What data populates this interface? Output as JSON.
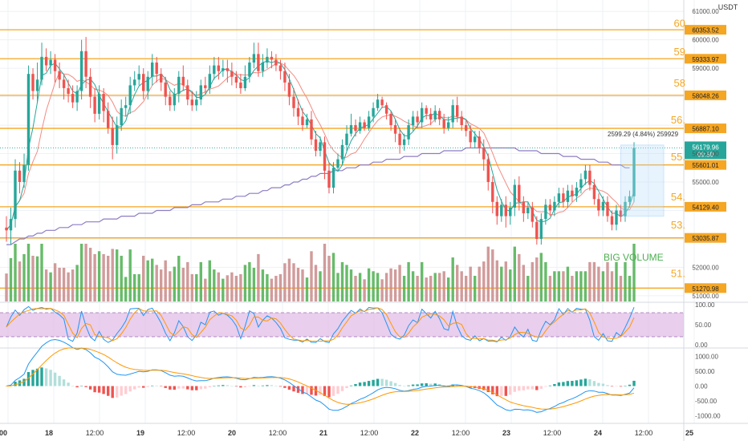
{
  "currency": "USDT",
  "big_price_labels": [
    "60",
    "59",
    "58",
    "56.",
    "55.",
    "54.",
    "53.",
    "51."
  ],
  "annotation": "BIG VOLUME",
  "measure_label": "2599.29 (4.84%) 259929",
  "colors": {
    "up": "#26a69a",
    "down": "#ef5350",
    "level": "#f5a623",
    "ma_long": "#8e7cc3",
    "vol_up": "#4caf50",
    "vol_down": "#c98a8a",
    "stoch_fill": "#e1bee7",
    "macd_line": "#2196f3",
    "signal_line": "#ff9800"
  },
  "chart_data": [
    {
      "type": "candlestick",
      "title": "",
      "ylim": [
        50800,
        61400
      ],
      "y_ticks": [
        61000,
        60000,
        59000,
        58000,
        57000,
        56000,
        55000,
        54000,
        53000,
        52000,
        51000
      ],
      "x_labels": [
        "00",
        "18",
        "12:00",
        "19",
        "12:00",
        "20",
        "12:00",
        "21",
        "12:00",
        "22",
        "12:00",
        "23",
        "12:00",
        "24",
        "12:00",
        "25"
      ],
      "horizontal_levels": [
        60353.52,
        59333.97,
        58048.26,
        56887.1,
        55601.01,
        54129.4,
        53035.87,
        51270.98
      ],
      "current_price": "56179.96",
      "countdown": "09:50",
      "candles": [
        [
          53400,
          53300,
          52900,
          53800
        ],
        [
          53300,
          53700,
          52800,
          54100
        ],
        [
          53700,
          55400,
          53400,
          55800
        ],
        [
          55400,
          55000,
          54600,
          55700
        ],
        [
          55000,
          55600,
          54800,
          56000
        ],
        [
          55600,
          58800,
          55400,
          59100
        ],
        [
          58800,
          58200,
          57900,
          59000
        ],
        [
          58200,
          58600,
          57800,
          59200
        ],
        [
          58600,
          59400,
          58400,
          59900
        ],
        [
          59400,
          59100,
          58900,
          59700
        ],
        [
          59100,
          59300,
          58800,
          59600
        ],
        [
          59300,
          58900,
          58500,
          59500
        ],
        [
          58900,
          58600,
          58300,
          59200
        ],
        [
          58600,
          58300,
          57900,
          58800
        ],
        [
          58300,
          58100,
          57800,
          58600
        ],
        [
          58100,
          57800,
          57600,
          58400
        ],
        [
          57800,
          58200,
          57500,
          58400
        ],
        [
          58200,
          59600,
          57900,
          60000
        ],
        [
          59600,
          58700,
          58300,
          60100
        ],
        [
          58700,
          58000,
          57600,
          59000
        ],
        [
          58000,
          57400,
          57100,
          58300
        ],
        [
          57400,
          58100,
          57200,
          58400
        ],
        [
          58100,
          57500,
          57100,
          58300
        ],
        [
          57500,
          56900,
          56700,
          57800
        ],
        [
          56900,
          56300,
          55800,
          57300
        ],
        [
          56300,
          57000,
          56000,
          57300
        ],
        [
          57000,
          57600,
          56800,
          57900
        ],
        [
          57600,
          57700,
          57300,
          58000
        ],
        [
          57700,
          58400,
          57400,
          58700
        ],
        [
          58400,
          58600,
          58200,
          58900
        ],
        [
          58600,
          58800,
          58400,
          59100
        ],
        [
          58800,
          58200,
          57900,
          59000
        ],
        [
          58200,
          58700,
          57900,
          58900
        ],
        [
          58700,
          59200,
          58400,
          59500
        ],
        [
          59200,
          58800,
          58500,
          59400
        ],
        [
          58800,
          58500,
          58200,
          59000
        ],
        [
          58500,
          58000,
          57700,
          58700
        ],
        [
          58000,
          57700,
          57500,
          58200
        ],
        [
          57700,
          58100,
          57500,
          58300
        ],
        [
          58100,
          58700,
          57800,
          58900
        ],
        [
          58700,
          58400,
          58200,
          59100
        ],
        [
          58400,
          57900,
          57700,
          58600
        ],
        [
          57900,
          57700,
          57500,
          58200
        ],
        [
          57700,
          57900,
          57500,
          58200
        ],
        [
          57900,
          58400,
          57700,
          58600
        ],
        [
          58400,
          58300,
          58100,
          58700
        ],
        [
          58300,
          58800,
          58100,
          59100
        ],
        [
          58800,
          59100,
          58600,
          59400
        ],
        [
          59100,
          58900,
          58600,
          59400
        ],
        [
          58900,
          59000,
          58700,
          59300
        ],
        [
          59000,
          58900,
          58500,
          59300
        ],
        [
          58900,
          58700,
          58400,
          59200
        ],
        [
          58700,
          58500,
          58300,
          58900
        ],
        [
          58500,
          58300,
          58100,
          58800
        ],
        [
          58300,
          58700,
          58200,
          59100
        ],
        [
          58700,
          59200,
          58500,
          59400
        ],
        [
          59200,
          59500,
          59000,
          59900
        ],
        [
          59500,
          58900,
          58700,
          59900
        ],
        [
          58900,
          59200,
          58700,
          59500
        ],
        [
          59200,
          59400,
          59000,
          59700
        ],
        [
          59400,
          59300,
          59000,
          59600
        ],
        [
          59300,
          59100,
          58900,
          59500
        ],
        [
          59100,
          58900,
          58600,
          59300
        ],
        [
          58900,
          58500,
          58200,
          59200
        ],
        [
          58500,
          58000,
          57700,
          58800
        ],
        [
          58000,
          57600,
          57300,
          58300
        ],
        [
          57600,
          57300,
          57000,
          57900
        ],
        [
          57300,
          57000,
          56800,
          57600
        ],
        [
          57000,
          57200,
          56900,
          57400
        ],
        [
          57200,
          56500,
          56300,
          57500
        ],
        [
          56500,
          56100,
          55900,
          56800
        ],
        [
          56100,
          56400,
          55900,
          56600
        ],
        [
          56400,
          55400,
          55100,
          56600
        ],
        [
          55400,
          54800,
          54600,
          55700
        ],
        [
          54800,
          55500,
          54600,
          55700
        ],
        [
          55500,
          55800,
          55400,
          56000
        ],
        [
          55800,
          56300,
          55600,
          56500
        ],
        [
          56300,
          56700,
          56100,
          57000
        ],
        [
          56700,
          57000,
          56600,
          57400
        ],
        [
          57000,
          56800,
          56600,
          57200
        ],
        [
          56800,
          57100,
          56700,
          57300
        ],
        [
          57100,
          56900,
          56800,
          57200
        ],
        [
          56900,
          57300,
          56800,
          57500
        ],
        [
          57300,
          57600,
          57100,
          57800
        ],
        [
          57600,
          57900,
          57500,
          58100
        ],
        [
          57900,
          57700,
          57600,
          58000
        ],
        [
          57700,
          57400,
          57200,
          57800
        ],
        [
          57400,
          57000,
          56800,
          57500
        ],
        [
          57000,
          56700,
          56400,
          57200
        ],
        [
          56700,
          56300,
          56000,
          56900
        ],
        [
          56300,
          56500,
          56100,
          56700
        ],
        [
          56500,
          57000,
          56300,
          57200
        ],
        [
          57000,
          57300,
          56800,
          57500
        ],
        [
          57300,
          57100,
          56900,
          57500
        ],
        [
          57100,
          57600,
          56900,
          57800
        ],
        [
          57600,
          57400,
          57200,
          57700
        ],
        [
          57400,
          57200,
          57000,
          57600
        ],
        [
          57200,
          57500,
          57100,
          57700
        ],
        [
          57500,
          57200,
          57000,
          57600
        ],
        [
          57200,
          56900,
          56700,
          57400
        ],
        [
          56900,
          57100,
          56800,
          57300
        ],
        [
          57100,
          57700,
          56900,
          57900
        ],
        [
          57700,
          57300,
          57100,
          58000
        ],
        [
          57300,
          57000,
          56800,
          57500
        ],
        [
          57000,
          56800,
          56600,
          57200
        ],
        [
          56800,
          56400,
          56200,
          57000
        ],
        [
          56400,
          56600,
          56200,
          56800
        ],
        [
          56600,
          56200,
          56000,
          56800
        ],
        [
          56200,
          55800,
          55400,
          56500
        ],
        [
          55800,
          55000,
          54700,
          56000
        ],
        [
          55000,
          54300,
          53900,
          55200
        ],
        [
          54300,
          53800,
          53500,
          54500
        ],
        [
          53800,
          54200,
          53600,
          54400
        ],
        [
          54200,
          53800,
          53400,
          54500
        ],
        [
          53800,
          54100,
          53500,
          54300
        ],
        [
          54100,
          54900,
          53800,
          55100
        ],
        [
          54900,
          54300,
          54000,
          55200
        ],
        [
          54300,
          53900,
          53600,
          54500
        ],
        [
          53900,
          54100,
          53700,
          54300
        ],
        [
          54100,
          53600,
          53400,
          54300
        ],
        [
          53600,
          53000,
          52800,
          53800
        ],
        [
          53000,
          53700,
          52800,
          53900
        ],
        [
          53700,
          54200,
          53500,
          54400
        ],
        [
          54200,
          54000,
          53800,
          54400
        ],
        [
          54000,
          54300,
          53800,
          54500
        ],
        [
          54300,
          54600,
          54100,
          54800
        ],
        [
          54600,
          54300,
          54100,
          54800
        ],
        [
          54300,
          54700,
          54100,
          54900
        ],
        [
          54700,
          54500,
          54300,
          54900
        ],
        [
          54500,
          54800,
          54300,
          55000
        ],
        [
          54800,
          55100,
          54600,
          55300
        ],
        [
          55100,
          55400,
          54900,
          55600
        ],
        [
          55400,
          54900,
          54700,
          55600
        ],
        [
          54900,
          54400,
          54200,
          55100
        ],
        [
          54400,
          54000,
          53800,
          54600
        ],
        [
          54000,
          54300,
          53800,
          54500
        ],
        [
          54300,
          53800,
          53600,
          54500
        ],
        [
          53800,
          53500,
          53300,
          54000
        ],
        [
          53500,
          54000,
          53300,
          54200
        ],
        [
          54000,
          53800,
          53600,
          54200
        ],
        [
          53800,
          54300,
          53600,
          54500
        ],
        [
          54300,
          54500,
          54100,
          54700
        ],
        [
          54500,
          56200,
          54300,
          56400
        ]
      ],
      "overlays": [
        {
          "name": "",
          "values": [
            52800,
            52800,
            52900,
            53000,
            53000,
            53100,
            53100,
            53200,
            53200,
            53300,
            53300,
            53300,
            53400,
            53400,
            53400,
            53500,
            53500,
            53500,
            53600,
            53600,
            53600,
            53600,
            53700,
            53700,
            53700,
            53700,
            53800,
            53800,
            53800,
            53800,
            53900,
            53900,
            53900,
            53900,
            54000,
            54000,
            54000,
            54000,
            54100,
            54100,
            54100,
            54100,
            54200,
            54200,
            54200,
            54300,
            54300,
            54300,
            54300,
            54400,
            54400,
            54400,
            54500,
            54500,
            54500,
            54600,
            54600,
            54600,
            54700,
            54700,
            54800,
            54800,
            54800,
            54900,
            54900,
            55000,
            55000,
            55100,
            55100,
            55200,
            55200,
            55300,
            55300,
            55300,
            55400,
            55400,
            55400,
            55500,
            55500,
            55500,
            55600,
            55600,
            55600,
            55700,
            55700,
            55700,
            55800,
            55800,
            55800,
            55800,
            55900,
            55900,
            55900,
            55900,
            56000,
            56000,
            56000,
            56000,
            56000,
            56100,
            56100,
            56100,
            56100,
            56100,
            56200,
            56200,
            56200,
            56200,
            56200,
            56200,
            56200,
            56200,
            56200,
            56200,
            56200,
            56200,
            56100,
            56100,
            56100,
            56100,
            56100,
            56000,
            56000,
            56000,
            56000,
            56000,
            55900,
            55900,
            55900,
            55900,
            55800,
            55800,
            55800,
            55800,
            55700,
            55700,
            55700,
            55600,
            55600,
            55600,
            55500,
            55500
          ]
        }
      ]
    },
    {
      "type": "stochastic",
      "ylim": [
        0,
        100
      ],
      "y_ticks": [
        100,
        50,
        0
      ],
      "band": [
        20,
        80
      ]
    },
    {
      "type": "macd",
      "ylim": [
        -1200,
        1200
      ],
      "y_ticks": [
        1000,
        500,
        0,
        -500,
        -1000
      ]
    }
  ]
}
